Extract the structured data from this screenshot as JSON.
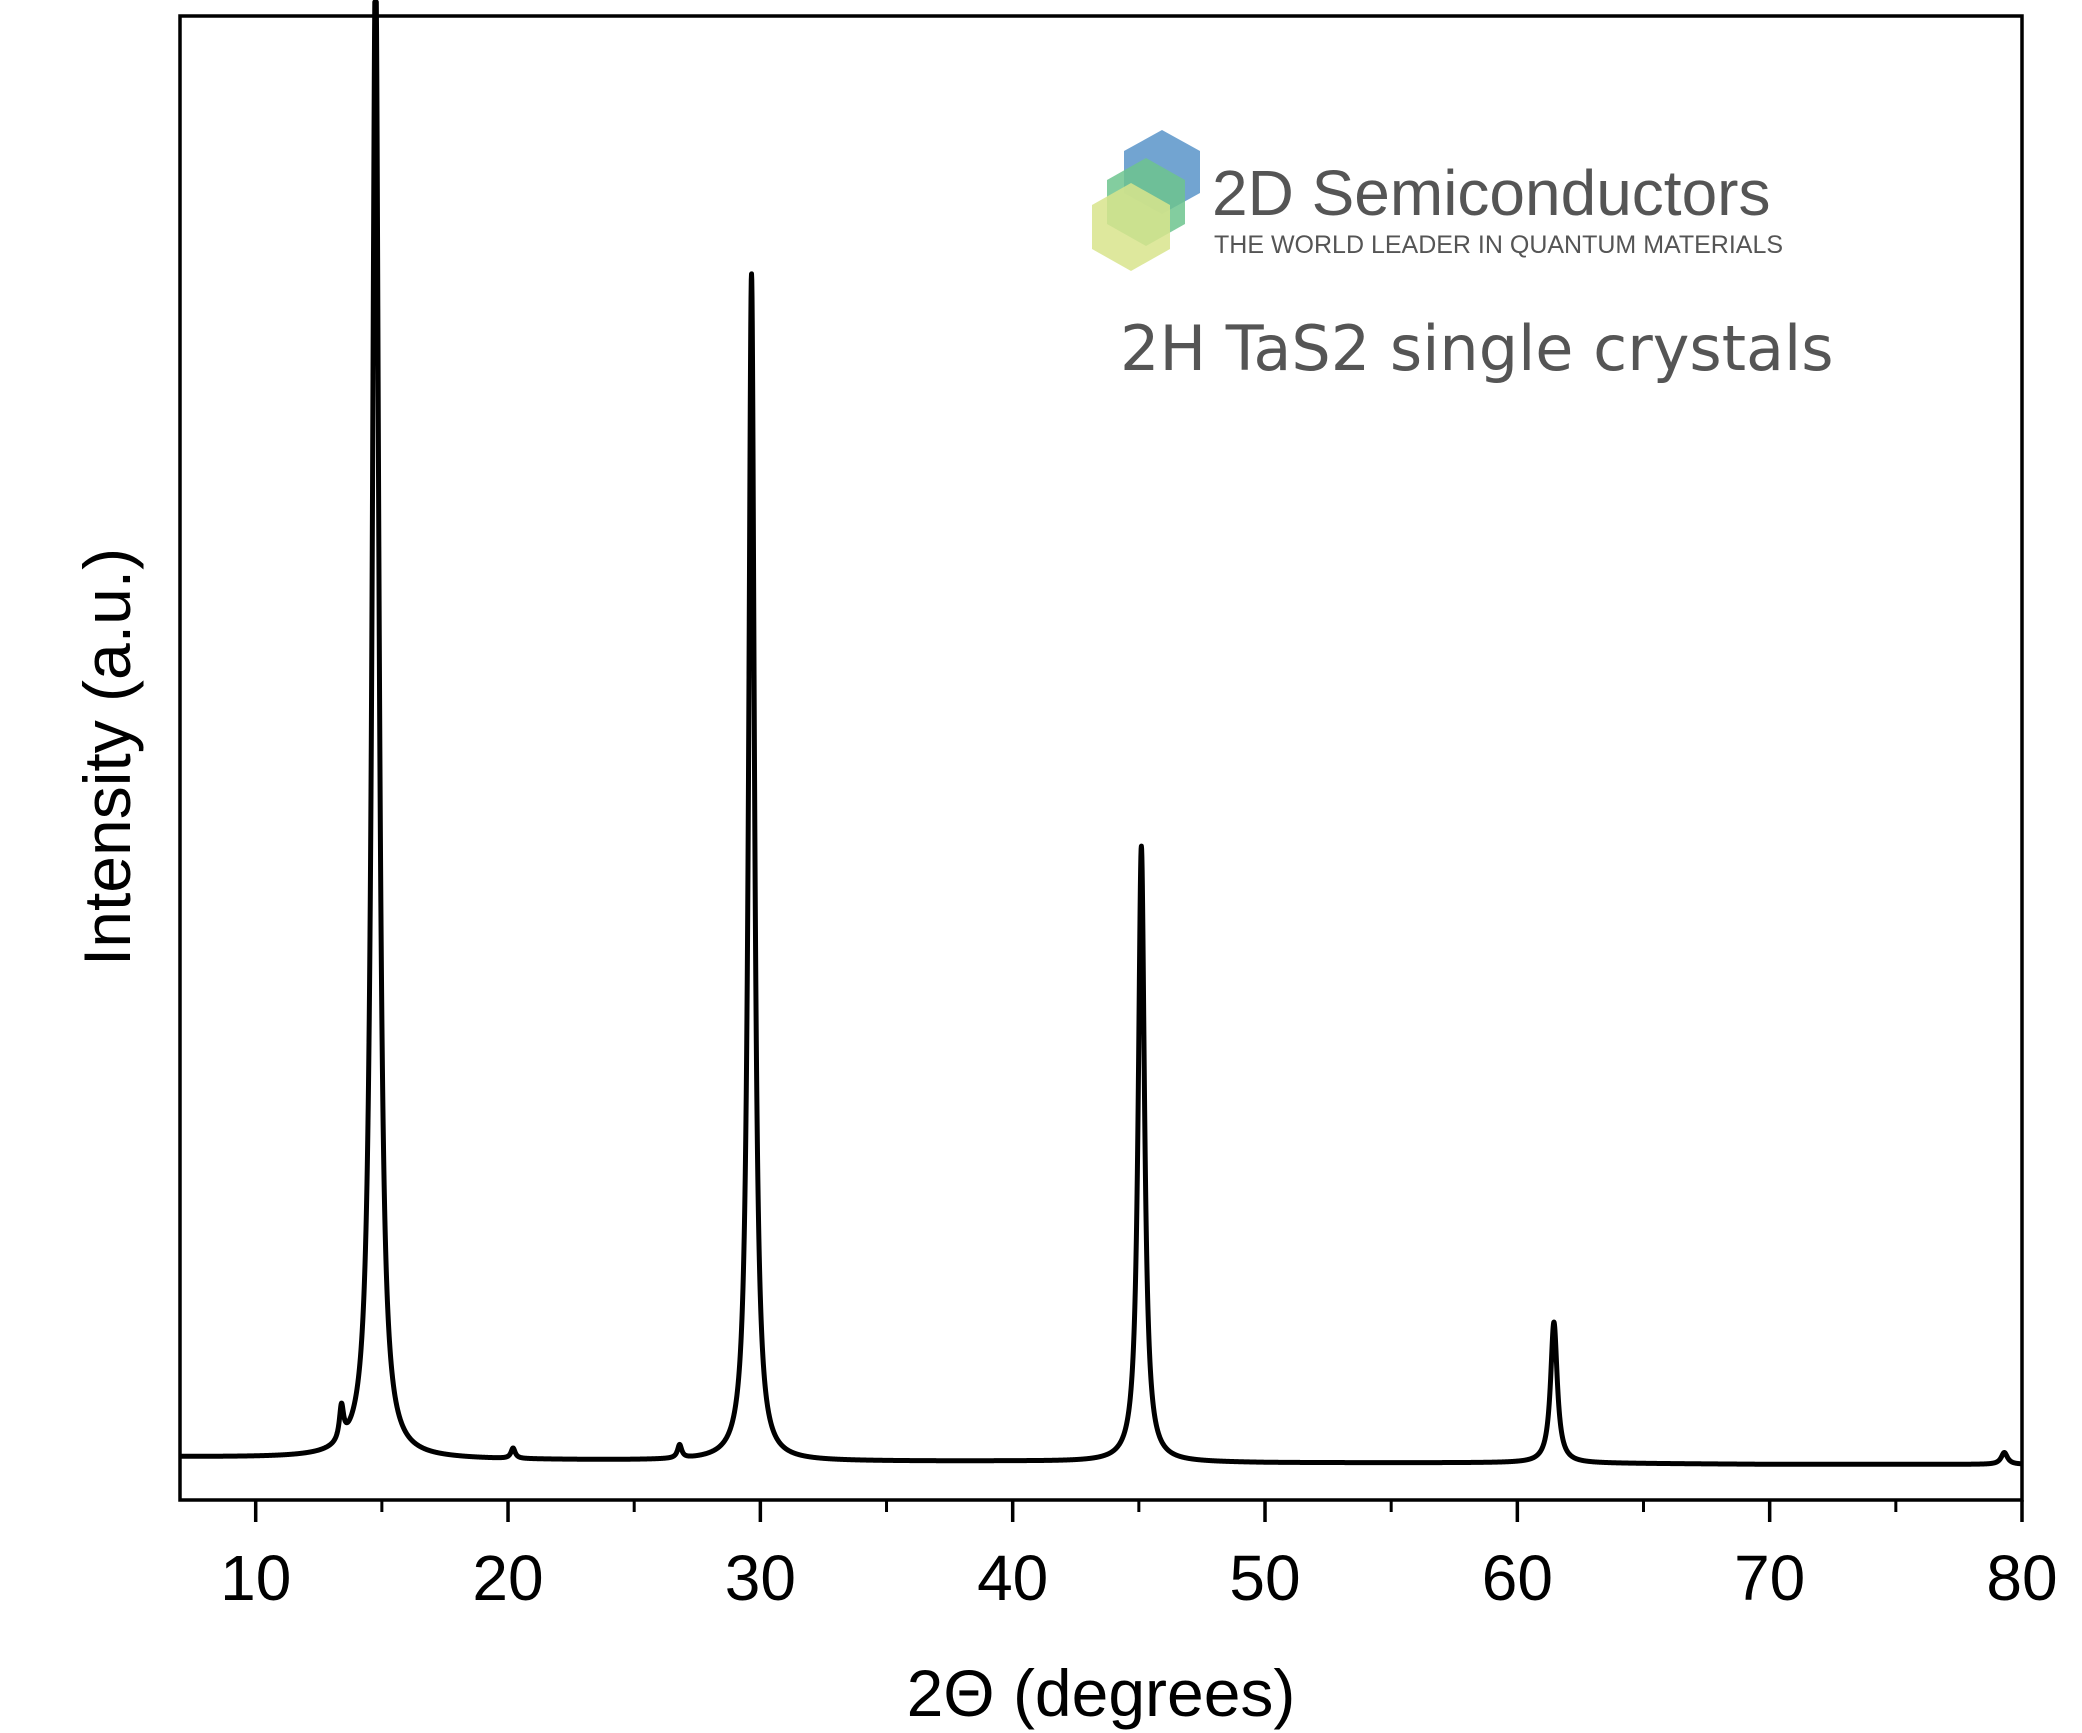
{
  "chart_data": {
    "type": "line",
    "xlabel": "2Θ (degrees)",
    "ylabel": "Intensity (a.u.)",
    "xlim": [
      7,
      80
    ],
    "ylim": [
      0,
      100
    ],
    "x_ticks": [
      10,
      20,
      30,
      40,
      50,
      60,
      70,
      80
    ],
    "x_minor_ticks": [
      15,
      25,
      35,
      45,
      55,
      65,
      75
    ],
    "y_ticks_shown": false,
    "grid": false,
    "series": [
      {
        "color": "#000000",
        "peaks": [
          {
            "x": 13.4,
            "height": 2.3,
            "width": 0.1
          },
          {
            "x": 14.75,
            "height": 102,
            "width": 0.16
          },
          {
            "x": 20.2,
            "height": 0.7,
            "width": 0.1
          },
          {
            "x": 26.8,
            "height": 0.9,
            "width": 0.1
          },
          {
            "x": 29.65,
            "height": 80,
            "width": 0.14
          },
          {
            "x": 45.1,
            "height": 41.5,
            "width": 0.15
          },
          {
            "x": 61.45,
            "height": 9.5,
            "width": 0.16
          },
          {
            "x": 79.3,
            "height": 0.8,
            "width": 0.15
          }
        ],
        "baseline": [
          [
            7,
            2.9
          ],
          [
            14,
            2.8
          ],
          [
            20,
            2.7
          ],
          [
            30,
            2.6
          ],
          [
            40,
            2.6
          ],
          [
            50,
            2.5
          ],
          [
            60,
            2.5
          ],
          [
            70,
            2.4
          ],
          [
            80,
            2.4
          ]
        ]
      }
    ],
    "annotation": "2H TaS2 single crystals"
  },
  "logo": {
    "name": "2D Semiconductors",
    "tagline": "THE WORLD LEADER IN QUANTUM MATERIALS",
    "colors": {
      "blue": "#6a9fcf",
      "green": "#6dc48e",
      "yellow": "#d8e48c",
      "text": "#555555"
    }
  }
}
